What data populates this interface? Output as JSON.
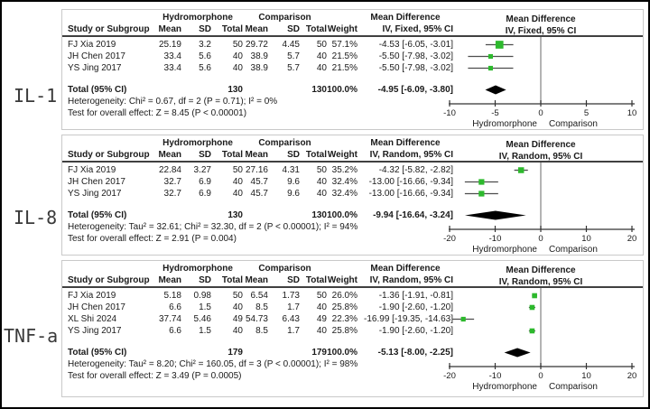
{
  "figure": {
    "description": "Forest plots of mean differences, hydromorphone vs comparison, for three inflammatory markers"
  },
  "colors": {
    "marker_green": "#2db92d",
    "diamond_black": "#000000",
    "ci_line": "#4d4d4d",
    "zero_line": "#8c8c8c",
    "axis_line": "#333333",
    "header_rule": "#404040",
    "panel_border": "#c9c9c9"
  },
  "panels": [
    {
      "outcome_label": "IL-1",
      "group1_header": "Hydromorphone",
      "group2_header": "Comparison",
      "effect_header": "Mean Difference",
      "plot_header": "Mean Difference",
      "plot_subheader": "IV, Fixed, 95% CI",
      "col_headers": {
        "study": "Study or Subgroup",
        "mean": "Mean",
        "sd": "SD",
        "total": "Total",
        "weight": "Weight",
        "effect": "IV, Fixed, 95% CI"
      },
      "studies": [
        {
          "name": "FJ Xia 2019",
          "mean1": "25.19",
          "sd1": "3.2",
          "n1": "50",
          "mean2": "29.72",
          "sd2": "4.45",
          "n2": "50",
          "weight": "57.1%",
          "effect": "-4.53 [-6.05, -3.01]"
        },
        {
          "name": "JH Chen 2017",
          "mean1": "33.4",
          "sd1": "5.6",
          "n1": "40",
          "mean2": "38.9",
          "sd2": "5.7",
          "n2": "40",
          "weight": "21.5%",
          "effect": "-5.50 [-7.98, -3.02]"
        },
        {
          "name": "YS Jing 2017",
          "mean1": "33.4",
          "sd1": "5.6",
          "n1": "40",
          "mean2": "38.9",
          "sd2": "5.7",
          "n2": "40",
          "weight": "21.5%",
          "effect": "-5.50 [-7.98, -3.02]"
        }
      ],
      "total_row": {
        "label": "Total (95% CI)",
        "n1": "130",
        "n2": "130",
        "weight": "100.0%",
        "effect": "-4.95 [-6.09, -3.80]"
      },
      "heterogeneity": "Heterogeneity: Chi² = 0.67, df = 2 (P = 0.71); I² = 0%",
      "overall_test": "Test for overall effect: Z = 8.45 (P < 0.00001)",
      "axis_left_label": "Hydromorphone",
      "axis_right_label": "Comparison"
    },
    {
      "outcome_label": "IL-8",
      "group1_header": "Hydromorphone",
      "group2_header": "Comparison",
      "effect_header": "Mean Difference",
      "plot_header": "Mean Difference",
      "plot_subheader": "IV, Random, 95% CI",
      "col_headers": {
        "study": "Study or Subgroup",
        "mean": "Mean",
        "sd": "SD",
        "total": "Total",
        "weight": "Weight",
        "effect": "IV, Random, 95% CI"
      },
      "studies": [
        {
          "name": "FJ Xia 2019",
          "mean1": "22.84",
          "sd1": "3.27",
          "n1": "50",
          "mean2": "27.16",
          "sd2": "4.31",
          "n2": "50",
          "weight": "35.2%",
          "effect": "-4.32 [-5.82, -2.82]"
        },
        {
          "name": "JH Chen 2017",
          "mean1": "32.7",
          "sd1": "6.9",
          "n1": "40",
          "mean2": "45.7",
          "sd2": "9.6",
          "n2": "40",
          "weight": "32.4%",
          "effect": "-13.00 [-16.66, -9.34]"
        },
        {
          "name": "YS Jing 2017",
          "mean1": "32.7",
          "sd1": "6.9",
          "n1": "40",
          "mean2": "45.7",
          "sd2": "9.6",
          "n2": "40",
          "weight": "32.4%",
          "effect": "-13.00 [-16.66, -9.34]"
        }
      ],
      "total_row": {
        "label": "Total (95% CI)",
        "n1": "130",
        "n2": "130",
        "weight": "100.0%",
        "effect": "-9.94 [-16.64, -3.24]"
      },
      "heterogeneity": "Heterogeneity: Tau² = 32.61; Chi² = 32.30, df = 2 (P < 0.00001); I² = 94%",
      "overall_test": "Test for overall effect: Z = 2.91 (P = 0.004)",
      "axis_left_label": "Hydromorphone",
      "axis_right_label": "Comparison"
    },
    {
      "outcome_label": "TNF-a",
      "group1_header": "Hydromorphone",
      "group2_header": "Comparison",
      "effect_header": "Mean Difference",
      "plot_header": "Mean Difference",
      "plot_subheader": "IV, Random, 95% CI",
      "col_headers": {
        "study": "Study or Subgroup",
        "mean": "Mean",
        "sd": "SD",
        "total": "Total",
        "weight": "Weight",
        "effect": "IV, Random, 95% CI"
      },
      "studies": [
        {
          "name": "FJ Xia 2019",
          "mean1": "5.18",
          "sd1": "0.98",
          "n1": "50",
          "mean2": "6.54",
          "sd2": "1.73",
          "n2": "50",
          "weight": "26.0%",
          "effect": "-1.36 [-1.91, -0.81]"
        },
        {
          "name": "JH Chen 2017",
          "mean1": "6.6",
          "sd1": "1.5",
          "n1": "40",
          "mean2": "8.5",
          "sd2": "1.7",
          "n2": "40",
          "weight": "25.8%",
          "effect": "-1.90 [-2.60, -1.20]"
        },
        {
          "name": "XL Shi 2024",
          "mean1": "37.74",
          "sd1": "5.46",
          "n1": "49",
          "mean2": "54.73",
          "sd2": "6.43",
          "n2": "49",
          "weight": "22.3%",
          "effect": "-16.99 [-19.35, -14.63]"
        },
        {
          "name": "YS Jing 2017",
          "mean1": "6.6",
          "sd1": "1.5",
          "n1": "40",
          "mean2": "8.5",
          "sd2": "1.7",
          "n2": "40",
          "weight": "25.8%",
          "effect": "-1.90 [-2.60, -1.20]"
        }
      ],
      "total_row": {
        "label": "Total (95% CI)",
        "n1": "179",
        "n2": "179",
        "weight": "100.0%",
        "effect": "-5.13 [-8.00, -2.25]"
      },
      "heterogeneity": "Heterogeneity: Tau² = 8.20; Chi² = 160.05, df = 3 (P < 0.00001); I² = 98%",
      "overall_test": "Test for overall effect: Z = 3.49 (P = 0.0005)",
      "axis_left_label": "Hydromorphone",
      "axis_right_label": "Comparison"
    }
  ],
  "chart_data": [
    {
      "type": "scatter",
      "title": "IL-1",
      "subtitle": "Mean Difference, IV, Fixed, 95% CI",
      "categories": [
        "FJ Xia 2019",
        "JH Chen 2017",
        "YS Jing 2017"
      ],
      "series": [
        {
          "name": "mean_difference",
          "values": [
            -4.53,
            -5.5,
            -5.5
          ]
        },
        {
          "name": "ci_lower",
          "values": [
            -6.05,
            -7.98,
            -7.98
          ]
        },
        {
          "name": "ci_upper",
          "values": [
            -3.01,
            -3.02,
            -3.02
          ]
        },
        {
          "name": "weight_pct",
          "values": [
            57.1,
            21.5,
            21.5
          ]
        }
      ],
      "total": {
        "label": "Total (95% CI)",
        "mean_difference": -4.95,
        "ci_lower": -6.09,
        "ci_upper": -3.8
      },
      "xlim": [
        -10,
        10
      ],
      "xticks": [
        -10,
        -5,
        0,
        5,
        10
      ],
      "xlabel_left": "Hydromorphone",
      "xlabel_right": "Comparison",
      "legend": "none",
      "grid": "off"
    },
    {
      "type": "scatter",
      "title": "IL-8",
      "subtitle": "Mean Difference, IV, Random, 95% CI",
      "categories": [
        "FJ Xia 2019",
        "JH Chen 2017",
        "YS Jing 2017"
      ],
      "series": [
        {
          "name": "mean_difference",
          "values": [
            -4.32,
            -13.0,
            -13.0
          ]
        },
        {
          "name": "ci_lower",
          "values": [
            -5.82,
            -16.66,
            -16.66
          ]
        },
        {
          "name": "ci_upper",
          "values": [
            -2.82,
            -9.34,
            -9.34
          ]
        },
        {
          "name": "weight_pct",
          "values": [
            35.2,
            32.4,
            32.4
          ]
        }
      ],
      "total": {
        "label": "Total (95% CI)",
        "mean_difference": -9.94,
        "ci_lower": -16.64,
        "ci_upper": -3.24
      },
      "xlim": [
        -20,
        20
      ],
      "xticks": [
        -20,
        -10,
        0,
        10,
        20
      ],
      "xlabel_left": "Hydromorphone",
      "xlabel_right": "Comparison",
      "legend": "none",
      "grid": "off"
    },
    {
      "type": "scatter",
      "title": "TNF-a",
      "subtitle": "Mean Difference, IV, Random, 95% CI",
      "categories": [
        "FJ Xia 2019",
        "JH Chen 2017",
        "XL Shi 2024",
        "YS Jing 2017"
      ],
      "series": [
        {
          "name": "mean_difference",
          "values": [
            -1.36,
            -1.9,
            -16.99,
            -1.9
          ]
        },
        {
          "name": "ci_lower",
          "values": [
            -1.91,
            -2.6,
            -19.35,
            -2.6
          ]
        },
        {
          "name": "ci_upper",
          "values": [
            -0.81,
            -1.2,
            -14.63,
            -1.2
          ]
        },
        {
          "name": "weight_pct",
          "values": [
            26.0,
            25.8,
            22.3,
            25.8
          ]
        }
      ],
      "total": {
        "label": "Total (95% CI)",
        "mean_difference": -5.13,
        "ci_lower": -8.0,
        "ci_upper": -2.25
      },
      "xlim": [
        -20,
        20
      ],
      "xticks": [
        -20,
        -10,
        0,
        10,
        20
      ],
      "xlabel_left": "Hydromorphone",
      "xlabel_right": "Comparison",
      "legend": "none",
      "grid": "off"
    }
  ]
}
